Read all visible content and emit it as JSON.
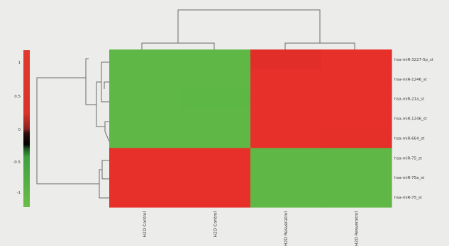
{
  "chart_data": {
    "type": "heatmap",
    "title": "",
    "rows": [
      "hsa-miR-3227-5p_st",
      "hsa-miR-1246_st",
      "hsa-miR-21a_st",
      "hsa-miR-1246_st",
      "hsa-miR-664_st",
      "hsa-miR-75_st",
      "hsa-miR-75a_st",
      "hsa-miR-75_st"
    ],
    "columns": [
      "H2D Control",
      "H2D Control",
      "H2D Resveratrol",
      "H2D Resveratrol"
    ],
    "values": [
      [
        -1.0,
        -1.0,
        1.2,
        1.0
      ],
      [
        -1.0,
        -1.0,
        1.0,
        1.0
      ],
      [
        -1.0,
        -1.1,
        1.0,
        1.0
      ],
      [
        -1.0,
        -1.0,
        1.0,
        1.0
      ],
      [
        -1.0,
        -1.0,
        1.0,
        1.1
      ],
      [
        1.0,
        1.0,
        -1.0,
        -1.0
      ],
      [
        1.0,
        1.0,
        -1.0,
        -1.0
      ],
      [
        1.0,
        1.0,
        -1.0,
        -1.0
      ]
    ],
    "color_scale": {
      "low": "#5fb845",
      "mid": "#000000",
      "high": "#e8302a",
      "ticks": [
        "1",
        "0.5",
        "0",
        "-0.5",
        "-1"
      ]
    }
  }
}
